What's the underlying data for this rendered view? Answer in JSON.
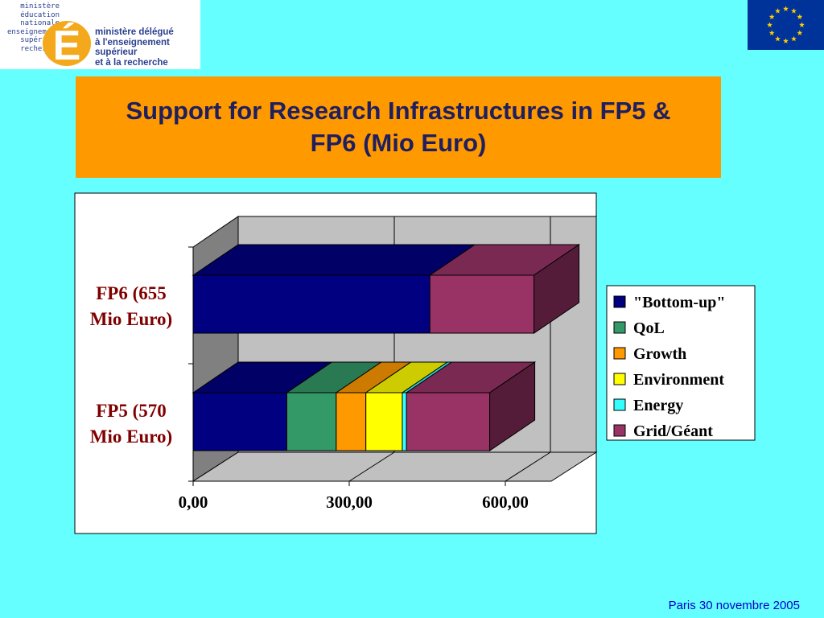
{
  "header": {
    "logo_left_lines": [
      "ministère",
      "éducation",
      "nationale",
      "enseignement",
      "supérieur",
      "recherche"
    ],
    "logo_letter": "É",
    "logo_right_lines": [
      "ministère délégué",
      "à l'enseignement supérieur",
      "et à la recherche"
    ]
  },
  "colors": {
    "background": "#66ffff",
    "title_bg": "#ff9900",
    "eu_blue": "#003399",
    "eu_star": "#ffcc00"
  },
  "title": {
    "line1": "Support for Research Infrastructures in FP5 &",
    "line2": "FP6 (Mio Euro)"
  },
  "chart_data": {
    "type": "bar",
    "orientation": "horizontal",
    "stacked": true,
    "three_d": true,
    "categories": [
      [
        "FP6 (655",
        "Mio Euro)"
      ],
      [
        "FP5 (570",
        "Mio Euro)"
      ]
    ],
    "series": [
      {
        "name": "\"Bottom-up\"",
        "color": "#000080",
        "values": [
          455,
          180
        ]
      },
      {
        "name": "QoL",
        "color": "#339966",
        "values": [
          0,
          95
        ]
      },
      {
        "name": "Growth",
        "color": "#ff9900",
        "values": [
          0,
          57
        ]
      },
      {
        "name": "Environment",
        "color": "#ffff00",
        "values": [
          0,
          70
        ]
      },
      {
        "name": "Energy",
        "color": "#33ffff",
        "values": [
          0,
          8
        ]
      },
      {
        "name": "Grid/Géant",
        "color": "#993366",
        "values": [
          200,
          160
        ]
      }
    ],
    "xlim": [
      0,
      700
    ],
    "xticks": [
      "0,00",
      "300,00",
      "600,00"
    ],
    "xtick_values": [
      0,
      300,
      600
    ],
    "grid": true,
    "legend_position": "right"
  },
  "footer": {
    "text": "Paris 30 novembre 2005"
  }
}
